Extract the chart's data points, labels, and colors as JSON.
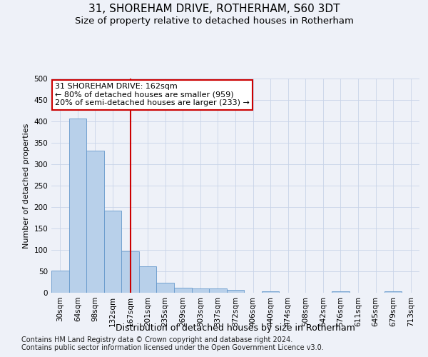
{
  "title1": "31, SHOREHAM DRIVE, ROTHERHAM, S60 3DT",
  "title2": "Size of property relative to detached houses in Rotherham",
  "xlabel": "Distribution of detached houses by size in Rotherham",
  "ylabel": "Number of detached properties",
  "categories": [
    "30sqm",
    "64sqm",
    "98sqm",
    "132sqm",
    "167sqm",
    "201sqm",
    "235sqm",
    "269sqm",
    "303sqm",
    "337sqm",
    "372sqm",
    "406sqm",
    "440sqm",
    "474sqm",
    "508sqm",
    "542sqm",
    "576sqm",
    "611sqm",
    "645sqm",
    "679sqm",
    "713sqm"
  ],
  "values": [
    52,
    407,
    332,
    191,
    97,
    62,
    23,
    12,
    10,
    10,
    6,
    0,
    4,
    0,
    0,
    0,
    4,
    0,
    0,
    4,
    0
  ],
  "bar_color": "#b8d0ea",
  "bar_edge_color": "#6699cc",
  "vline_x_idx": 4,
  "vline_color": "#cc0000",
  "annotation_line1": "31 SHOREHAM DRIVE: 162sqm",
  "annotation_line2": "← 80% of detached houses are smaller (959)",
  "annotation_line3": "20% of semi-detached houses are larger (233) →",
  "annotation_box_facecolor": "#ffffff",
  "annotation_box_edgecolor": "#cc0000",
  "bg_color": "#eef1f8",
  "plot_bg": "#eef1f8",
  "footer1": "Contains HM Land Registry data © Crown copyright and database right 2024.",
  "footer2": "Contains public sector information licensed under the Open Government Licence v3.0.",
  "ylim": [
    0,
    500
  ],
  "yticks": [
    0,
    50,
    100,
    150,
    200,
    250,
    300,
    350,
    400,
    450,
    500
  ],
  "title1_fontsize": 11,
  "title2_fontsize": 9.5,
  "xlabel_fontsize": 9,
  "ylabel_fontsize": 8,
  "tick_fontsize": 7.5,
  "footer_fontsize": 7,
  "annot_fontsize": 8
}
